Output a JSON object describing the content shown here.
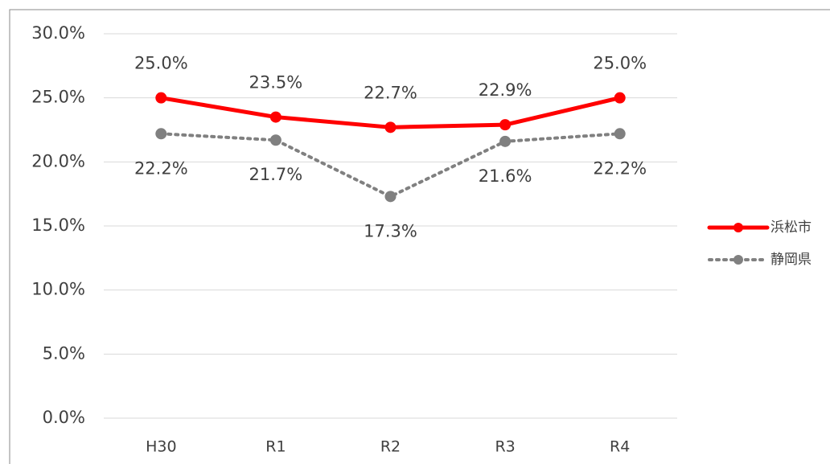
{
  "chart_data": {
    "type": "line",
    "categories": [
      "H30",
      "R1",
      "R2",
      "R3",
      "R4"
    ],
    "series": [
      {
        "name": "浜松市",
        "color": "#ff0000",
        "style": "solid",
        "values": [
          25.0,
          23.5,
          22.7,
          22.9,
          25.0
        ],
        "value_labels": [
          "25.0%",
          "23.5%",
          "22.7%",
          "22.9%",
          "25.0%"
        ]
      },
      {
        "name": "静岡県",
        "color": "#808080",
        "style": "dotted",
        "values": [
          22.2,
          21.7,
          17.3,
          21.6,
          22.2
        ],
        "value_labels": [
          "22.2%",
          "21.7%",
          "17.3%",
          "21.6%",
          "22.2%"
        ]
      }
    ],
    "ylim": [
      0,
      30
    ],
    "yticks": [
      {
        "value": 0,
        "label": "0.0%"
      },
      {
        "value": 5,
        "label": "5.0%"
      },
      {
        "value": 10,
        "label": "10.0%"
      },
      {
        "value": 15,
        "label": "15.0%"
      },
      {
        "value": 20,
        "label": "20.0%"
      },
      {
        "value": 25,
        "label": "25.0%"
      },
      {
        "value": 30,
        "label": "30.0%"
      }
    ],
    "grid": true,
    "legend": "right"
  }
}
